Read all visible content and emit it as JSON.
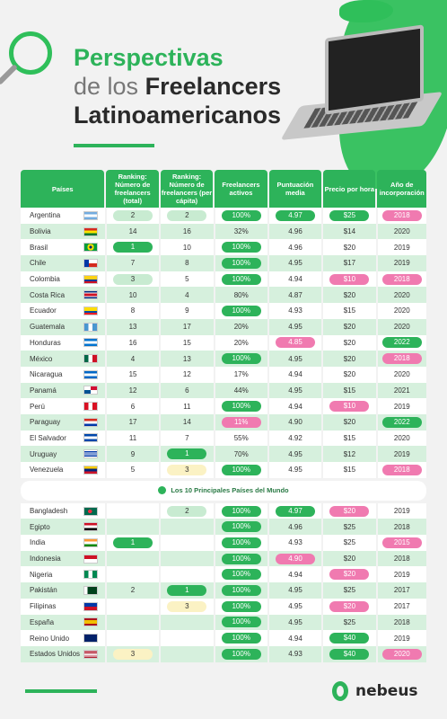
{
  "title": {
    "line1": "Perspectivas",
    "line2_light": "de los",
    "line2_bold": "Freelancers",
    "line3": "Latinoamericanos"
  },
  "headers": [
    "Países",
    "Ranking: Número de freelancers (total)",
    "Ranking: Número de freelancers (per cápita)",
    "Freelancers activos",
    "Puntuación media",
    "Precio por hora",
    "Año de incorporación"
  ],
  "latam": [
    {
      "country": "Argentina",
      "flag": "ar",
      "rt": "2",
      "rt_s": "lgreen",
      "rp": "2",
      "rp_s": "lgreen",
      "fa": "100%",
      "fa_s": "green",
      "pm": "4.97",
      "pm_s": "green",
      "ph": "$25",
      "ph_s": "green",
      "yr": "2018",
      "yr_s": "pink"
    },
    {
      "country": "Bolivia",
      "flag": "bo",
      "rt": "14",
      "rt_s": "",
      "rp": "16",
      "rp_s": "",
      "fa": "32%",
      "fa_s": "",
      "pm": "4.96",
      "pm_s": "",
      "ph": "$14",
      "ph_s": "",
      "yr": "2020",
      "yr_s": ""
    },
    {
      "country": "Brasil",
      "flag": "br",
      "rt": "1",
      "rt_s": "green",
      "rp": "10",
      "rp_s": "",
      "fa": "100%",
      "fa_s": "green",
      "pm": "4.96",
      "pm_s": "",
      "ph": "$20",
      "ph_s": "",
      "yr": "2019",
      "yr_s": ""
    },
    {
      "country": "Chile",
      "flag": "cl",
      "rt": "7",
      "rt_s": "",
      "rp": "8",
      "rp_s": "",
      "fa": "100%",
      "fa_s": "green",
      "pm": "4.95",
      "pm_s": "",
      "ph": "$17",
      "ph_s": "",
      "yr": "2019",
      "yr_s": ""
    },
    {
      "country": "Colombia",
      "flag": "co",
      "rt": "3",
      "rt_s": "lgreen",
      "rp": "5",
      "rp_s": "",
      "fa": "100%",
      "fa_s": "green",
      "pm": "4.94",
      "pm_s": "",
      "ph": "$10",
      "ph_s": "pink",
      "yr": "2018",
      "yr_s": "pink"
    },
    {
      "country": "Costa Rica",
      "flag": "cr",
      "rt": "10",
      "rt_s": "",
      "rp": "4",
      "rp_s": "",
      "fa": "80%",
      "fa_s": "",
      "pm": "4.87",
      "pm_s": "",
      "ph": "$20",
      "ph_s": "",
      "yr": "2020",
      "yr_s": ""
    },
    {
      "country": "Ecuador",
      "flag": "ec",
      "rt": "8",
      "rt_s": "",
      "rp": "9",
      "rp_s": "",
      "fa": "100%",
      "fa_s": "green",
      "pm": "4.93",
      "pm_s": "",
      "ph": "$15",
      "ph_s": "",
      "yr": "2020",
      "yr_s": ""
    },
    {
      "country": "Guatemala",
      "flag": "gt",
      "rt": "13",
      "rt_s": "",
      "rp": "17",
      "rp_s": "",
      "fa": "20%",
      "fa_s": "",
      "pm": "4.95",
      "pm_s": "",
      "ph": "$20",
      "ph_s": "",
      "yr": "2020",
      "yr_s": ""
    },
    {
      "country": "Honduras",
      "flag": "hn",
      "rt": "16",
      "rt_s": "",
      "rp": "15",
      "rp_s": "",
      "fa": "20%",
      "fa_s": "",
      "pm": "4.85",
      "pm_s": "pink",
      "ph": "$20",
      "ph_s": "",
      "yr": "2022",
      "yr_s": "green"
    },
    {
      "country": "México",
      "flag": "mx",
      "rt": "4",
      "rt_s": "",
      "rp": "13",
      "rp_s": "",
      "fa": "100%",
      "fa_s": "green",
      "pm": "4.95",
      "pm_s": "",
      "ph": "$20",
      "ph_s": "",
      "yr": "2018",
      "yr_s": "pink"
    },
    {
      "country": "Nicaragua",
      "flag": "ni",
      "rt": "15",
      "rt_s": "",
      "rp": "12",
      "rp_s": "",
      "fa": "17%",
      "fa_s": "",
      "pm": "4.94",
      "pm_s": "",
      "ph": "$20",
      "ph_s": "",
      "yr": "2020",
      "yr_s": ""
    },
    {
      "country": "Panamá",
      "flag": "pa",
      "rt": "12",
      "rt_s": "",
      "rp": "6",
      "rp_s": "",
      "fa": "44%",
      "fa_s": "",
      "pm": "4.95",
      "pm_s": "",
      "ph": "$15",
      "ph_s": "",
      "yr": "2021",
      "yr_s": ""
    },
    {
      "country": "Perú",
      "flag": "pe",
      "rt": "6",
      "rt_s": "",
      "rp": "11",
      "rp_s": "",
      "fa": "100%",
      "fa_s": "green",
      "pm": "4.94",
      "pm_s": "",
      "ph": "$10",
      "ph_s": "pink",
      "yr": "2019",
      "yr_s": ""
    },
    {
      "country": "Paraguay",
      "flag": "py",
      "rt": "17",
      "rt_s": "",
      "rp": "14",
      "rp_s": "",
      "fa": "11%",
      "fa_s": "pink",
      "pm": "4.90",
      "pm_s": "",
      "ph": "$20",
      "ph_s": "",
      "yr": "2022",
      "yr_s": "green"
    },
    {
      "country": "El Salvador",
      "flag": "sv",
      "rt": "11",
      "rt_s": "",
      "rp": "7",
      "rp_s": "",
      "fa": "55%",
      "fa_s": "",
      "pm": "4.92",
      "pm_s": "",
      "ph": "$15",
      "ph_s": "",
      "yr": "2020",
      "yr_s": ""
    },
    {
      "country": "Uruguay",
      "flag": "uy",
      "rt": "9",
      "rt_s": "",
      "rp": "1",
      "rp_s": "green",
      "fa": "70%",
      "fa_s": "",
      "pm": "4.95",
      "pm_s": "",
      "ph": "$12",
      "ph_s": "",
      "yr": "2019",
      "yr_s": ""
    },
    {
      "country": "Venezuela",
      "flag": "ve",
      "rt": "5",
      "rt_s": "",
      "rp": "3",
      "rp_s": "yellow",
      "fa": "100%",
      "fa_s": "green",
      "pm": "4.95",
      "pm_s": "",
      "ph": "$15",
      "ph_s": "",
      "yr": "2018",
      "yr_s": "pink"
    }
  ],
  "world_label": "Los 10 Principales Países del Mundo",
  "world": [
    {
      "country": "Bangladesh",
      "flag": "bd",
      "rt": "",
      "rt_s": "",
      "rp": "2",
      "rp_s": "lgreen",
      "fa": "100%",
      "fa_s": "green",
      "pm": "4.97",
      "pm_s": "green",
      "ph": "$20",
      "ph_s": "pink",
      "yr": "2019",
      "yr_s": ""
    },
    {
      "country": "Egipto",
      "flag": "eg",
      "rt": "",
      "rt_s": "",
      "rp": "",
      "rp_s": "",
      "fa": "100%",
      "fa_s": "green",
      "pm": "4.96",
      "pm_s": "",
      "ph": "$25",
      "ph_s": "",
      "yr": "2018",
      "yr_s": ""
    },
    {
      "country": "India",
      "flag": "in",
      "rt": "1",
      "rt_s": "green",
      "rp": "",
      "rp_s": "",
      "fa": "100%",
      "fa_s": "green",
      "pm": "4.93",
      "pm_s": "",
      "ph": "$25",
      "ph_s": "",
      "yr": "2015",
      "yr_s": "pink"
    },
    {
      "country": "Indonesia",
      "flag": "id",
      "rt": "",
      "rt_s": "",
      "rp": "",
      "rp_s": "",
      "fa": "100%",
      "fa_s": "green",
      "pm": "4.90",
      "pm_s": "pink",
      "ph": "$20",
      "ph_s": "",
      "yr": "2018",
      "yr_s": ""
    },
    {
      "country": "Nigeria",
      "flag": "ng",
      "rt": "",
      "rt_s": "",
      "rp": "",
      "rp_s": "",
      "fa": "100%",
      "fa_s": "green",
      "pm": "4.94",
      "pm_s": "",
      "ph": "$20",
      "ph_s": "pink",
      "yr": "2019",
      "yr_s": ""
    },
    {
      "country": "Pakistán",
      "flag": "pk",
      "rt": "2",
      "rt_s": "",
      "rp": "1",
      "rp_s": "green",
      "fa": "100%",
      "fa_s": "green",
      "pm": "4.95",
      "pm_s": "",
      "ph": "$25",
      "ph_s": "",
      "yr": "2017",
      "yr_s": ""
    },
    {
      "country": "Filipinas",
      "flag": "ph",
      "rt": "",
      "rt_s": "",
      "rp": "3",
      "rp_s": "yellow",
      "fa": "100%",
      "fa_s": "green",
      "pm": "4.95",
      "pm_s": "",
      "ph": "$20",
      "ph_s": "pink",
      "yr": "2017",
      "yr_s": ""
    },
    {
      "country": "España",
      "flag": "es",
      "rt": "",
      "rt_s": "",
      "rp": "",
      "rp_s": "",
      "fa": "100%",
      "fa_s": "green",
      "pm": "4.95",
      "pm_s": "",
      "ph": "$25",
      "ph_s": "",
      "yr": "2018",
      "yr_s": ""
    },
    {
      "country": "Reino Unido",
      "flag": "gb",
      "rt": "",
      "rt_s": "",
      "rp": "",
      "rp_s": "",
      "fa": "100%",
      "fa_s": "green",
      "pm": "4.94",
      "pm_s": "",
      "ph": "$40",
      "ph_s": "green",
      "yr": "2019",
      "yr_s": ""
    },
    {
      "country": "Estados Unidos",
      "flag": "us",
      "rt": "3",
      "rt_s": "yellow",
      "rp": "",
      "rp_s": "",
      "fa": "100%",
      "fa_s": "green",
      "pm": "4.93",
      "pm_s": "",
      "ph": "$40",
      "ph_s": "green",
      "yr": "2020",
      "yr_s": "pink"
    }
  ],
  "flags": {
    "ar": "linear-gradient(#74acdf 0 33%, #fff 33% 66%, #74acdf 66%)",
    "bo": "linear-gradient(#d52b1e 0 33%, #f9e300 33% 66%, #007934 66%)",
    "br": "radial-gradient(circle, #002776 0 20%, #ffdf00 21% 45%, #009c3b 46%)",
    "cl": "linear-gradient(90deg, #0039a6 0 35%, transparent 35%), linear-gradient(#fff 0 50%, #d52b1e 50%)",
    "co": "linear-gradient(#fcd116 0 50%, #003893 50% 75%, #ce1126 75%)",
    "cr": "linear-gradient(#002b7f 0 17%, #fff 17% 33%, #ce1126 33% 67%, #fff 67% 83%, #002b7f 83%)",
    "ec": "linear-gradient(#ffdd00 0 50%, #034ea2 50% 75%, #ed1c24 75%)",
    "gt": "linear-gradient(90deg, #4997d0 0 33%, #fff 33% 66%, #4997d0 66%)",
    "hn": "linear-gradient(#0073cf 0 33%, #fff 33% 66%, #0073cf 66%)",
    "mx": "linear-gradient(90deg, #006847 0 33%, #fff 33% 66%, #ce1126 66%)",
    "ni": "linear-gradient(#0067c6 0 33%, #fff 33% 66%, #0067c6 66%)",
    "pa": "conic-gradient(#d21034 0 25%, #fff 25% 50%, #005293 50% 75%, #fff 75%)",
    "pe": "linear-gradient(90deg, #d91023 0 33%, #fff 33% 66%, #d91023 66%)",
    "py": "linear-gradient(#d52b1e 0 33%, #fff 33% 66%, #0038a8 66%)",
    "sv": "linear-gradient(#0047ab 0 33%, #fff 33% 66%, #0047ab 66%)",
    "uy": "repeating-linear-gradient(#fff 0 11%, #0038a8 11% 22%)",
    "ve": "linear-gradient(#ffcc00 0 33%, #00247d 33% 66%, #cf142b 66%)",
    "bd": "radial-gradient(circle at 45% 50%, #f42a41 0 25%, #006a4e 26%)",
    "eg": "linear-gradient(#ce1126 0 33%, #fff 33% 66%, #000 66%)",
    "in": "linear-gradient(#ff9933 0 33%, #fff 33% 66%, #138808 66%)",
    "id": "linear-gradient(#ce1126 0 50%, #fff 50%)",
    "ng": "linear-gradient(90deg, #008751 0 33%, #fff 33% 66%, #008751 66%)",
    "pk": "linear-gradient(90deg, #fff 0 25%, #01411c 25%)",
    "ph": "linear-gradient(#0038a8 0 50%, #ce1126 50%)",
    "es": "linear-gradient(#aa151b 0 25%, #f1bf00 25% 75%, #aa151b 75%)",
    "gb": "linear-gradient(#012169, #012169), linear-gradient(#c8102e,#c8102e)",
    "us": "repeating-linear-gradient(#b22234 0 8%, #fff 8% 15%)"
  },
  "logo": "nebeus"
}
